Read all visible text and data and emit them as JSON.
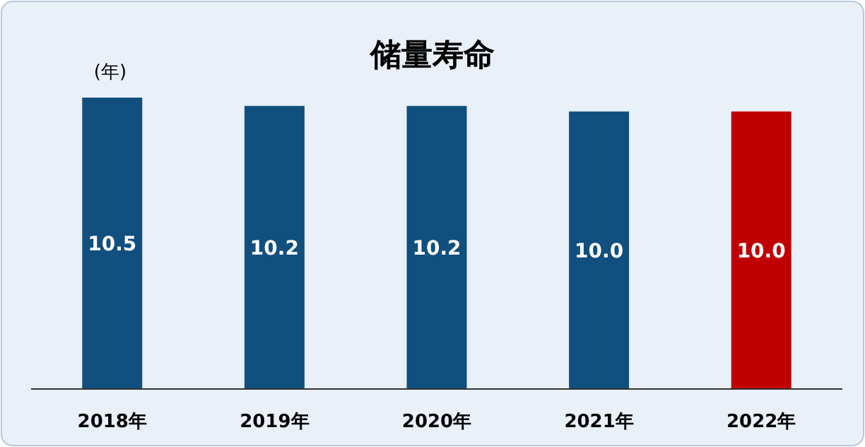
{
  "chart_data": {
    "type": "bar",
    "title": "储量寿命",
    "ylabel": "(年)",
    "categories": [
      "2018年",
      "2019年",
      "2020年",
      "2021年",
      "2022年"
    ],
    "values": [
      10.5,
      10.2,
      10.2,
      10.0,
      10.0
    ],
    "value_labels": [
      "10.5",
      "10.2",
      "10.2",
      "10.0",
      "10.0"
    ],
    "colors": [
      "#114f7e",
      "#114f7e",
      "#114f7e",
      "#114f7e",
      "#c00000"
    ]
  }
}
